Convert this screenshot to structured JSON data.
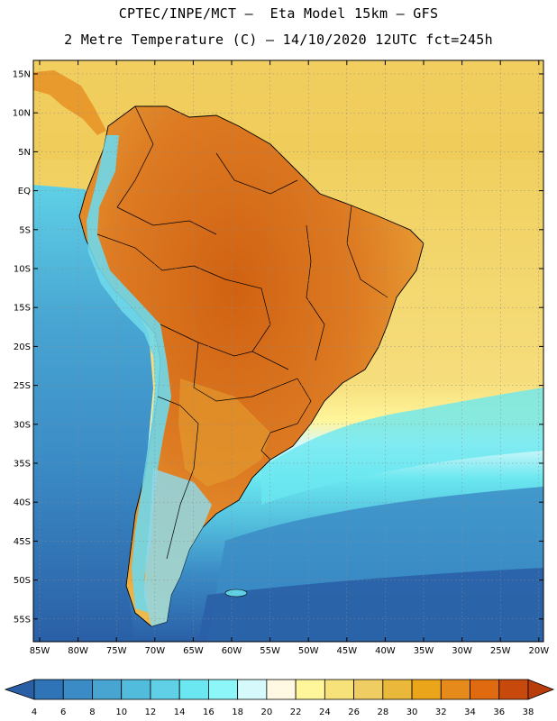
{
  "header": {
    "line1": "CPTEC/INPE/MCT –  Eta Model 15km – GFS",
    "line2": "2 Metre Temperature (C) – 14/10/2020 12UTC fct=245h"
  },
  "axes": {
    "lat_labels": [
      "15N",
      "10N",
      "5N",
      "EQ",
      "5S",
      "10S",
      "15S",
      "20S",
      "25S",
      "30S",
      "35S",
      "40S",
      "45S",
      "50S",
      "55S"
    ],
    "lon_labels": [
      "85W",
      "80W",
      "75W",
      "70W",
      "65W",
      "60W",
      "55W",
      "50W",
      "45W",
      "40W",
      "35W",
      "30W",
      "25W",
      "20W"
    ]
  },
  "colorbar": {
    "values": [
      "4",
      "6",
      "8",
      "10",
      "12",
      "14",
      "16",
      "18",
      "20",
      "22",
      "24",
      "26",
      "28",
      "30",
      "32",
      "34",
      "36",
      "38"
    ],
    "colors": [
      "#2a5fa6",
      "#2f74b7",
      "#3b8cc6",
      "#48a5d2",
      "#52bcdc",
      "#5fd0e6",
      "#6ae7f0",
      "#8cf6f9",
      "#d6f9fb",
      "#fff9e3",
      "#fff59a",
      "#f7e27a",
      "#f0cd63",
      "#eab83b",
      "#eaa51b",
      "#e68a1c",
      "#df6a10",
      "#c74a0c",
      "#b83d0a"
    ]
  },
  "regions": {
    "ocean_pacific": "#3f8cc8",
    "ocean_atlantic_north": "#f3d56a",
    "land_hot": "#d8741f",
    "land_warm": "#e8a83a",
    "andes": "#6fd8ea",
    "patagonia": "#7ac8e0",
    "south_ocean": "#2d6db0"
  }
}
